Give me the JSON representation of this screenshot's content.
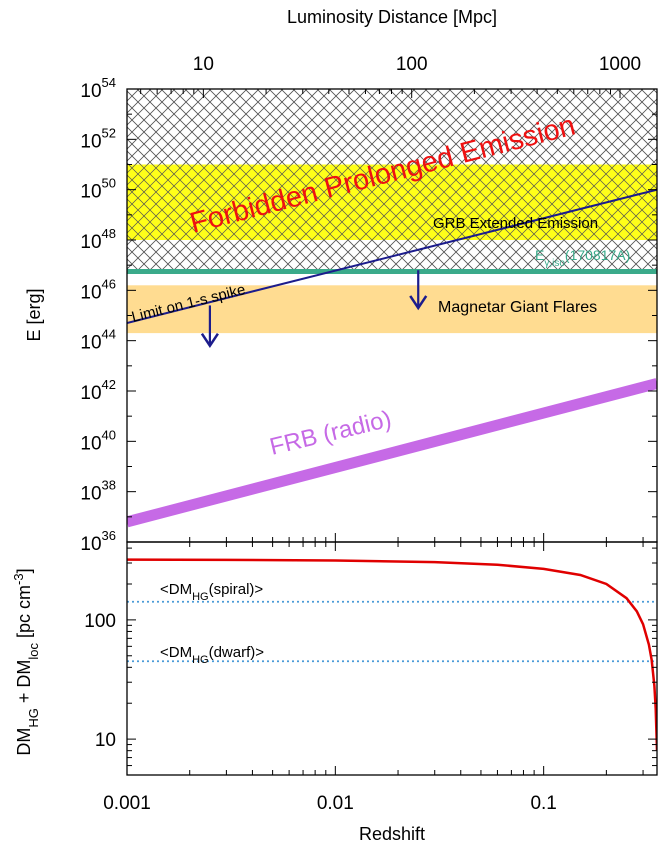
{
  "chart_data": [
    {
      "type": "line",
      "top_axis": {
        "label": "Luminosity  Distance [Mpc]",
        "ticks": [
          {
            "value": 10,
            "label": "10"
          },
          {
            "value": 100,
            "label": "100"
          },
          {
            "value": 1000,
            "label": "1000"
          }
        ]
      },
      "xscale": "log",
      "yscale": "log",
      "xlim": [
        0.001,
        0.35
      ],
      "ylim_exponents": [
        36,
        54
      ],
      "ylabel": "E [erg]",
      "ytick_base": "10",
      "ytick_exponents": [
        "36",
        "38",
        "40",
        "42",
        "44",
        "46",
        "48",
        "50",
        "52",
        "54"
      ],
      "regions": [
        {
          "label": "Forbidden Prolonged Emission",
          "pattern": "crosshatch",
          "color": "#555555",
          "y_exponent_range": [
            46.75,
            54
          ]
        },
        {
          "label": "GRB Extended Emission",
          "color": "#ffff00",
          "y_exponent_range": [
            48,
            51
          ]
        },
        {
          "label": "Magnetar Giant Flares",
          "color": "#ffdc91",
          "y_exponent_range": [
            44.3,
            46.2
          ]
        }
      ],
      "hline": {
        "label_main": "E",
        "label_sub": "γ,iso",
        "label_tail": "(170817A)",
        "color": "#3aaa8a",
        "y_exponent": 46.75
      },
      "series": [
        {
          "name": "Limit on 1-s spike",
          "color": "#1c1c8c",
          "x": [
            0.001,
            0.35
          ],
          "y_exponent": [
            44.7,
            50.0
          ]
        },
        {
          "name": "FRB (radio)",
          "color": "#c66ae6",
          "x": [
            0.001,
            0.35
          ],
          "y_exponent": [
            36.8,
            42.3
          ]
        }
      ],
      "arrows": [
        {
          "x": 0.0025,
          "y_exponent_from": 45.4,
          "y_exponent_to": 43.8
        },
        {
          "x": 0.025,
          "y_exponent_from": 46.8,
          "y_exponent_to": 45.3
        }
      ]
    },
    {
      "type": "line",
      "xscale": "log",
      "yscale": "log",
      "xlim": [
        0.001,
        0.35
      ],
      "ylim": [
        5,
        450
      ],
      "xlabel": "Redshift",
      "ylabel_parts": {
        "a": "DM",
        "a_sub": "HG",
        "mid": " + DM",
        "b_sub": "loc",
        "tail": " [pc cm",
        "sup": "-3",
        "close": "]"
      },
      "xticks": [
        {
          "value": 0.001,
          "label": "0.001"
        },
        {
          "value": 0.01,
          "label": "0.01"
        },
        {
          "value": 0.1,
          "label": "0.1"
        }
      ],
      "yticks": [
        {
          "value": 10,
          "label": "10"
        },
        {
          "value": 100,
          "label": "100"
        }
      ],
      "reference_lines": [
        {
          "label_main": "<DM",
          "label_sub": "HG",
          "label_tail": "(spiral)>",
          "y": 142,
          "color": "#4a9bd8"
        },
        {
          "label_main": "<DM",
          "label_sub": "HG",
          "label_tail": "(dwarf)>",
          "y": 45,
          "color": "#4a9bd8"
        }
      ],
      "series": [
        {
          "color": "#e00000",
          "x": [
            0.001,
            0.003,
            0.01,
            0.03,
            0.06,
            0.1,
            0.15,
            0.2,
            0.25,
            0.28,
            0.3,
            0.32,
            0.33,
            0.34,
            0.345,
            0.35
          ],
          "y": [
            320,
            319,
            315,
            305,
            290,
            268,
            238,
            200,
            152,
            118,
            92,
            62,
            46,
            28,
            18,
            8
          ]
        }
      ]
    }
  ]
}
